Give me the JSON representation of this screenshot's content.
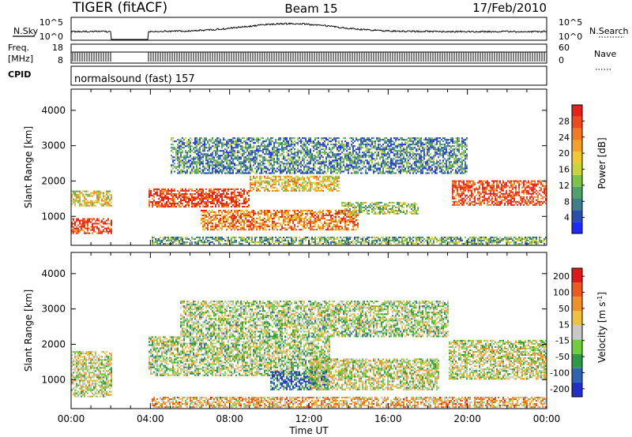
{
  "header": {
    "station": "TIGER (fitACF)",
    "beam": "Beam 15",
    "date": "17/Feb/2010"
  },
  "summary_panels": {
    "nsky": {
      "left_label": "N.Sky",
      "right_label": "N.Search",
      "left_ticks": [
        "10^5",
        "10^0"
      ],
      "right_ticks": [
        "10^5",
        "10^0"
      ]
    },
    "freq": {
      "left_label_1": "Freq.",
      "left_label_2": "[MHz]",
      "right_label": "Nave",
      "left_ticks": [
        "18",
        "8"
      ],
      "right_ticks": [
        "60",
        "0"
      ]
    },
    "cpid": {
      "left_label": "CPID",
      "text": "normalsound (fast) 157"
    }
  },
  "x_axis": {
    "label": "Time UT",
    "ticks": [
      "00:00",
      "04:00",
      "08:00",
      "12:00",
      "16:00",
      "20:00",
      "00:00"
    ]
  },
  "chart_data": [
    {
      "type": "heatmap",
      "panel": "power",
      "ylabel": "Slant Range [km]",
      "yticks": [
        "1000",
        "2000",
        "3000",
        "4000"
      ],
      "ylim": [
        180,
        4600
      ],
      "xlim_hours": [
        0,
        24
      ],
      "data_gap_hours": [
        2.0,
        3.9
      ],
      "colorbar": {
        "label": "Power [dB]",
        "ticks": [
          "4",
          "8",
          "12",
          "16",
          "20",
          "24",
          "28"
        ],
        "colors": [
          "#1e28ff",
          "#2a4fb0",
          "#3f7f8a",
          "#4ea36a",
          "#7fc24a",
          "#c8d43a",
          "#f0c830",
          "#f5a028",
          "#f37a22",
          "#ee4a1c",
          "#e8201a"
        ]
      },
      "bands": [
        {
          "t0": 0.0,
          "t1": 2.0,
          "r0": 1280,
          "r1": 1700,
          "level": 0.55
        },
        {
          "t0": 0.0,
          "t1": 2.0,
          "r0": 500,
          "r1": 950,
          "level": 0.9
        },
        {
          "t0": 3.9,
          "t1": 9.0,
          "r0": 1250,
          "r1": 1750,
          "level": 0.9
        },
        {
          "t0": 9.0,
          "t1": 13.5,
          "r0": 1700,
          "r1": 2150,
          "level": 0.6
        },
        {
          "t0": 6.5,
          "t1": 14.5,
          "r0": 600,
          "r1": 1150,
          "level": 0.75
        },
        {
          "t0": 13.5,
          "t1": 17.5,
          "r0": 1050,
          "r1": 1400,
          "level": 0.45
        },
        {
          "t0": 19.2,
          "t1": 24.0,
          "r0": 1300,
          "r1": 2000,
          "level": 0.9
        },
        {
          "t0": 4.0,
          "t1": 24.0,
          "r0": 200,
          "r1": 400,
          "level": 0.35
        },
        {
          "t0": 5.0,
          "t1": 20.0,
          "r0": 2200,
          "r1": 3200,
          "level": 0.25
        }
      ]
    },
    {
      "type": "heatmap",
      "panel": "velocity",
      "ylabel": "Slant Range [km]",
      "yticks": [
        "1000",
        "2000",
        "3000",
        "4000"
      ],
      "ylim": [
        180,
        4600
      ],
      "xlim_hours": [
        0,
        24
      ],
      "data_gap_hours": [
        2.0,
        3.9
      ],
      "colorbar": {
        "label": "Velocity [m s^-1]",
        "ticks": [
          "200",
          "100",
          "50",
          "15",
          "-15",
          "-50",
          "-100",
          "-200"
        ],
        "colors": [
          "#2030c8",
          "#2e64b4",
          "#2e9a46",
          "#6fcf3a",
          "#c8c8c8",
          "#f0c040",
          "#f09028",
          "#ee5a1e",
          "#e01818"
        ]
      },
      "bands": [
        {
          "t0": 0.0,
          "t1": 2.0,
          "r0": 500,
          "r1": 1800,
          "level": 0.5
        },
        {
          "t0": 3.9,
          "t1": 13.0,
          "r0": 1100,
          "r1": 2200,
          "level": 0.45
        },
        {
          "t0": 10.0,
          "t1": 13.0,
          "r0": 700,
          "r1": 1200,
          "level": 0.15
        },
        {
          "t0": 12.0,
          "t1": 18.5,
          "r0": 700,
          "r1": 1600,
          "level": 0.5
        },
        {
          "t0": 19.0,
          "t1": 24.0,
          "r0": 1000,
          "r1": 2100,
          "level": 0.5
        },
        {
          "t0": 4.0,
          "t1": 24.0,
          "r0": 200,
          "r1": 500,
          "level": 0.65
        },
        {
          "t0": 5.5,
          "t1": 19.0,
          "r0": 2200,
          "r1": 3200,
          "level": 0.45
        }
      ]
    }
  ]
}
